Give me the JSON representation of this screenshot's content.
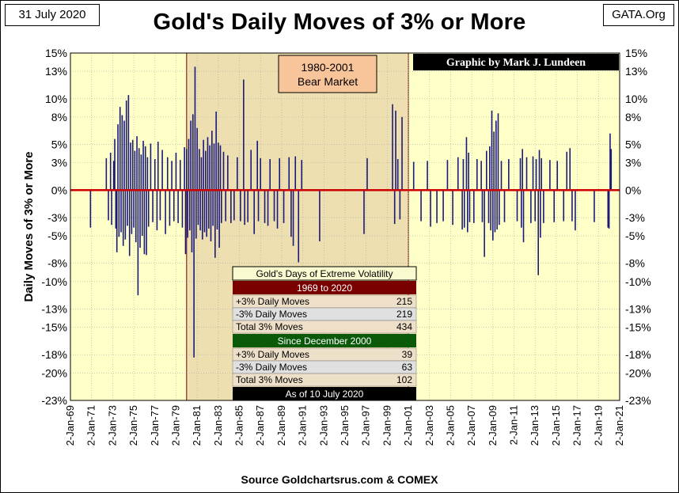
{
  "header": {
    "date": "31 July 2020",
    "source_tag": "GATA.Org",
    "title": "Gold's Daily Moves of 3% or More"
  },
  "footer": {
    "source": "Source Goldchartsrus.com & COMEX"
  },
  "chart_data": {
    "type": "bar",
    "title": "Gold's Daily Moves of 3% or More",
    "ylabel": "Daily Moves of 3% or More",
    "xlabel": "",
    "ylim": [
      -23,
      15
    ],
    "xlim": [
      "1969-01-02",
      "2021-01-02"
    ],
    "y_ticks": [
      15,
      13,
      10,
      8,
      5,
      3,
      0,
      -3,
      -5,
      -8,
      -10,
      -13,
      -15,
      -18,
      -20,
      -23
    ],
    "y_tick_labels": [
      "15%",
      "13%",
      "10%",
      "8%",
      "5%",
      "3%",
      "0%",
      "-3%",
      "-5%",
      "-8%",
      "-10%",
      "-13%",
      "-15%",
      "-18%",
      "-20%",
      "-23%"
    ],
    "x_tick_labels": [
      "2-Jan-69",
      "2-Jan-71",
      "2-Jan-73",
      "2-Jan-75",
      "2-Jan-77",
      "2-Jan-79",
      "2-Jan-81",
      "2-Jan-83",
      "2-Jan-85",
      "2-Jan-87",
      "2-Jan-89",
      "2-Jan-91",
      "2-Jan-93",
      "2-Jan-95",
      "2-Jan-97",
      "2-Jan-99",
      "2-Jan-01",
      "2-Jan-03",
      "2-Jan-05",
      "2-Jan-07",
      "2-Jan-09",
      "2-Jan-11",
      "2-Jan-13",
      "2-Jan-15",
      "2-Jan-17",
      "2-Jan-19",
      "2-Jan-21"
    ],
    "grid": true,
    "series_color": "#1a1a78",
    "zero_line_color": "#cc0000",
    "background_color": "#ffffc8",
    "shaded_region": {
      "from": "1980-01-02",
      "to": "2001-01-02",
      "color": "#eedfb0",
      "label_line1": "1980-2001",
      "label_line2": "Bear Market"
    },
    "credit": "Graphic by Mark J. Lundeen",
    "moves": [
      [
        1970.9,
        -4.1
      ],
      [
        1972.4,
        3.5
      ],
      [
        1972.6,
        -3.3
      ],
      [
        1972.8,
        4.1
      ],
      [
        1972.9,
        -3.8
      ],
      [
        1973.1,
        3.2
      ],
      [
        1973.2,
        5.6
      ],
      [
        1973.3,
        -4.2
      ],
      [
        1973.4,
        -6.8
      ],
      [
        1973.5,
        7.2
      ],
      [
        1973.6,
        -5.1
      ],
      [
        1973.7,
        9.1
      ],
      [
        1973.8,
        -4.6
      ],
      [
        1973.9,
        8.2
      ],
      [
        1974.0,
        -6.1
      ],
      [
        1974.1,
        7.6
      ],
      [
        1974.2,
        -5.4
      ],
      [
        1974.3,
        9.8
      ],
      [
        1974.4,
        -3.9
      ],
      [
        1974.5,
        10.4
      ],
      [
        1974.6,
        -7.2
      ],
      [
        1974.7,
        5.2
      ],
      [
        1974.8,
        -4.8
      ],
      [
        1974.9,
        5.5
      ],
      [
        1975.0,
        -4.1
      ],
      [
        1975.1,
        4.3
      ],
      [
        1975.2,
        -5.7
      ],
      [
        1975.3,
        5.9
      ],
      [
        1975.4,
        -11.5
      ],
      [
        1975.5,
        4.6
      ],
      [
        1975.6,
        -6.3
      ],
      [
        1975.7,
        3.9
      ],
      [
        1975.8,
        -5.0
      ],
      [
        1975.9,
        5.4
      ],
      [
        1976.0,
        -7.0
      ],
      [
        1976.1,
        4.8
      ],
      [
        1976.2,
        -7.1
      ],
      [
        1976.3,
        3.6
      ],
      [
        1976.4,
        -4.0
      ],
      [
        1976.6,
        5.1
      ],
      [
        1976.8,
        -3.5
      ],
      [
        1977.0,
        3.4
      ],
      [
        1977.2,
        -4.4
      ],
      [
        1977.3,
        5.3
      ],
      [
        1977.5,
        -3.3
      ],
      [
        1977.7,
        4.4
      ],
      [
        1978.0,
        -4.8
      ],
      [
        1978.2,
        3.6
      ],
      [
        1978.4,
        -3.9
      ],
      [
        1978.6,
        3.2
      ],
      [
        1978.8,
        -3.4
      ],
      [
        1979.0,
        4.1
      ],
      [
        1979.2,
        -3.6
      ],
      [
        1979.4,
        3.3
      ],
      [
        1979.6,
        -4.1
      ],
      [
        1979.8,
        4.7
      ],
      [
        1979.9,
        -7.0
      ],
      [
        1980.0,
        4.5
      ],
      [
        1980.1,
        -5.2
      ],
      [
        1980.2,
        5.6
      ],
      [
        1980.3,
        -4.4
      ],
      [
        1980.4,
        7.6
      ],
      [
        1980.5,
        -6.8
      ],
      [
        1980.6,
        8.3
      ],
      [
        1980.7,
        -18.3
      ],
      [
        1980.8,
        13.5
      ],
      [
        1980.9,
        -5.3
      ],
      [
        1981.0,
        6.8
      ],
      [
        1981.1,
        -3.8
      ],
      [
        1981.2,
        4.5
      ],
      [
        1981.3,
        -4.4
      ],
      [
        1981.4,
        3.6
      ],
      [
        1981.5,
        -5.4
      ],
      [
        1981.6,
        5.5
      ],
      [
        1981.7,
        -4.6
      ],
      [
        1981.8,
        4.3
      ],
      [
        1981.9,
        -5.1
      ],
      [
        1982.0,
        5.8
      ],
      [
        1982.1,
        -4.2
      ],
      [
        1982.2,
        4.9
      ],
      [
        1982.3,
        -5.6
      ],
      [
        1982.4,
        6.5
      ],
      [
        1982.5,
        -3.9
      ],
      [
        1982.6,
        5.1
      ],
      [
        1982.7,
        -7.4
      ],
      [
        1982.8,
        8.6
      ],
      [
        1982.9,
        -4.3
      ],
      [
        1983.0,
        5.2
      ],
      [
        1983.1,
        -6.3
      ],
      [
        1983.2,
        4.9
      ],
      [
        1983.3,
        -3.6
      ],
      [
        1983.5,
        4.2
      ],
      [
        1983.7,
        -3.4
      ],
      [
        1983.9,
        3.8
      ],
      [
        1984.2,
        -3.6
      ],
      [
        1984.5,
        -3.3
      ],
      [
        1984.8,
        3.6
      ],
      [
        1985.1,
        -3.4
      ],
      [
        1985.4,
        12.1
      ],
      [
        1985.5,
        -3.8
      ],
      [
        1985.8,
        -3.5
      ],
      [
        1986.1,
        4.4
      ],
      [
        1986.4,
        -4.8
      ],
      [
        1986.7,
        5.4
      ],
      [
        1986.8,
        -3.4
      ],
      [
        1987.0,
        3.5
      ],
      [
        1987.4,
        -3.6
      ],
      [
        1987.7,
        -3.9
      ],
      [
        1987.9,
        3.4
      ],
      [
        1988.3,
        -3.4
      ],
      [
        1988.6,
        -4.2
      ],
      [
        1988.8,
        3.5
      ],
      [
        1989.2,
        -3.6
      ],
      [
        1989.7,
        3.6
      ],
      [
        1989.9,
        -5.1
      ],
      [
        1990.1,
        -6.1
      ],
      [
        1990.3,
        3.7
      ],
      [
        1990.6,
        -7.9
      ],
      [
        1990.9,
        3.3
      ],
      [
        1992.6,
        -5.6
      ],
      [
        1996.8,
        -4.8
      ],
      [
        1997.1,
        3.5
      ],
      [
        1999.5,
        9.4
      ],
      [
        1999.7,
        -3.7
      ],
      [
        1999.8,
        8.7
      ],
      [
        2000.0,
        3.4
      ],
      [
        2000.2,
        -3.2
      ],
      [
        2000.4,
        8.0
      ],
      [
        2001.5,
        3.1
      ],
      [
        2002.2,
        -3.4
      ],
      [
        2002.8,
        3.2
      ],
      [
        2003.1,
        -4.0
      ],
      [
        2003.7,
        -3.6
      ],
      [
        2004.3,
        -3.4
      ],
      [
        2004.7,
        3.3
      ],
      [
        2005.2,
        -3.8
      ],
      [
        2005.7,
        3.6
      ],
      [
        2006.1,
        -4.3
      ],
      [
        2006.2,
        3.4
      ],
      [
        2006.3,
        -4.1
      ],
      [
        2006.5,
        5.8
      ],
      [
        2006.6,
        -4.6
      ],
      [
        2006.7,
        4.1
      ],
      [
        2006.8,
        -3.5
      ],
      [
        2007.2,
        -3.6
      ],
      [
        2007.5,
        3.4
      ],
      [
        2007.9,
        3.2
      ],
      [
        2008.0,
        -3.5
      ],
      [
        2008.2,
        -7.3
      ],
      [
        2008.4,
        4.3
      ],
      [
        2008.6,
        -3.6
      ],
      [
        2008.7,
        4.8
      ],
      [
        2008.8,
        -4.4
      ],
      [
        2008.9,
        8.7
      ],
      [
        2009.0,
        -5.5
      ],
      [
        2009.1,
        6.4
      ],
      [
        2009.2,
        -4.6
      ],
      [
        2009.3,
        7.6
      ],
      [
        2009.4,
        -4.3
      ],
      [
        2009.5,
        8.4
      ],
      [
        2009.6,
        -3.8
      ],
      [
        2009.8,
        3.2
      ],
      [
        2010.1,
        -3.5
      ],
      [
        2010.5,
        3.4
      ],
      [
        2011.3,
        -3.4
      ],
      [
        2011.6,
        3.5
      ],
      [
        2011.7,
        -4.1
      ],
      [
        2011.8,
        4.5
      ],
      [
        2011.9,
        -5.7
      ],
      [
        2012.2,
        3.6
      ],
      [
        2012.6,
        -3.6
      ],
      [
        2012.8,
        3.7
      ],
      [
        2013.0,
        -3.4
      ],
      [
        2013.1,
        3.4
      ],
      [
        2013.3,
        -9.3
      ],
      [
        2013.4,
        4.4
      ],
      [
        2013.5,
        -5.2
      ],
      [
        2013.6,
        3.5
      ],
      [
        2013.8,
        -3.6
      ],
      [
        2014.4,
        3.3
      ],
      [
        2014.8,
        -3.5
      ],
      [
        2015.1,
        3.2
      ],
      [
        2015.7,
        -3.4
      ],
      [
        2016.0,
        4.2
      ],
      [
        2016.3,
        4.6
      ],
      [
        2016.5,
        -3.4
      ],
      [
        2016.8,
        -4.4
      ],
      [
        2018.6,
        -3.5
      ],
      [
        2019.9,
        -4.1
      ],
      [
        2020.0,
        -4.2
      ],
      [
        2020.1,
        6.2
      ],
      [
        2020.2,
        4.5
      ]
    ]
  },
  "table": {
    "title": "Gold's Days of Extreme Volatility",
    "section1": {
      "header": "1969 to 2020",
      "rows": [
        {
          "label": "+3% Daily Moves",
          "value": "215"
        },
        {
          "label": "-3% Daily Moves",
          "value": "219"
        },
        {
          "label": "Total 3% Moves",
          "value": "434"
        }
      ]
    },
    "section2": {
      "header": "Since December 2000",
      "rows": [
        {
          "label": "+3% Daily Moves",
          "value": "39"
        },
        {
          "label": "-3% Daily Moves",
          "value": "63"
        },
        {
          "label": "Total 3% Moves",
          "value": "102"
        }
      ]
    },
    "footer": "As of 10 July 2020"
  }
}
